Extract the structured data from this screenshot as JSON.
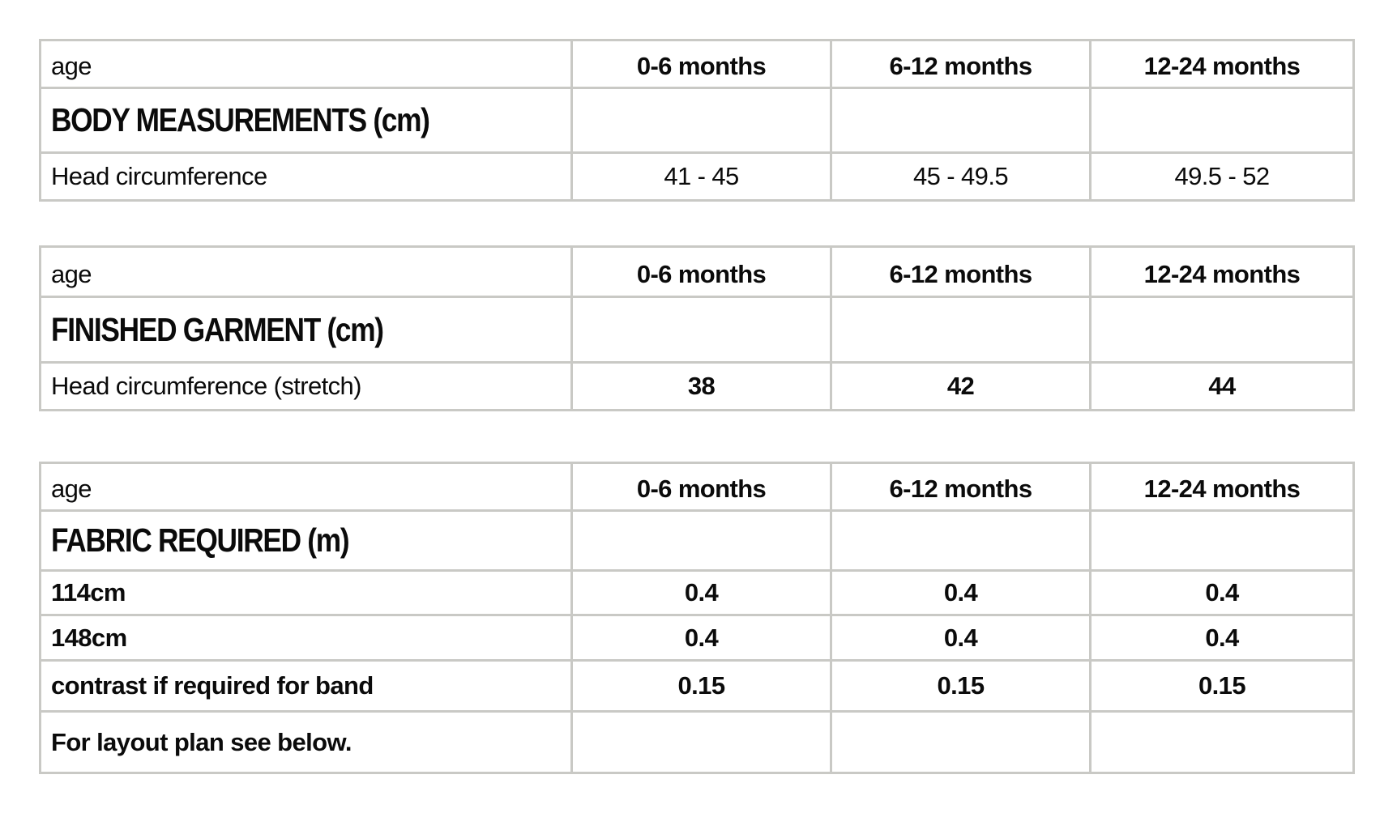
{
  "page": {
    "background_color": "#ffffff",
    "border_color": "#c9c9c5",
    "text_color": "#0b0b0b"
  },
  "age_label": "age",
  "columns": [
    "0-6 months",
    "6-12 months",
    "12-24 months"
  ],
  "tables": [
    {
      "section_title": "BODY MEASUREMENTS (cm)",
      "rows": [
        {
          "label": "Head circumference",
          "values": [
            "41 - 45",
            "45 - 49.5",
            "49.5 - 52"
          ]
        }
      ]
    },
    {
      "section_title": "FINISHED GARMENT (cm)",
      "rows": [
        {
          "label": "Head circumference (stretch)",
          "values": [
            "38",
            "42",
            "44"
          ]
        }
      ]
    },
    {
      "section_title": "FABRIC REQUIRED (m)",
      "rows": [
        {
          "label": "114cm",
          "values": [
            "0.4",
            "0.4",
            "0.4"
          ]
        },
        {
          "label": "148cm",
          "values": [
            "0.4",
            "0.4",
            "0.4"
          ]
        },
        {
          "label": "contrast if required for band",
          "values": [
            "0.15",
            "0.15",
            "0.15"
          ]
        },
        {
          "label": "For layout plan see below.",
          "values": [
            "",
            "",
            ""
          ]
        }
      ]
    }
  ]
}
